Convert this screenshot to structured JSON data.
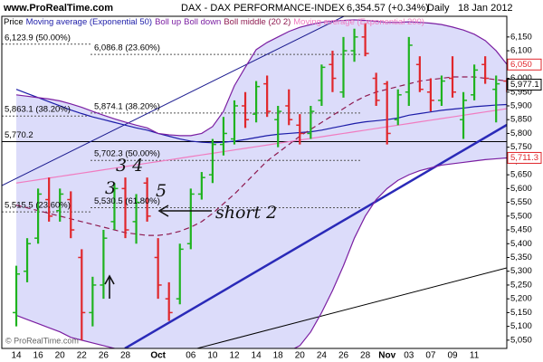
{
  "chart_data": {
    "type": "ohlc",
    "site": "www.ProRealTime.com",
    "title": "DAX - DAX PERFORMANCE-INDEX",
    "price": "6,354.57 (+0.34%)",
    "period": "Daily",
    "date": "18 Jan 2012",
    "watermark": "© ProRealTime.com",
    "price_label": "Price",
    "categories": [
      "14",
      null,
      "16",
      null,
      "20",
      null,
      "22",
      null,
      "26",
      null,
      "28",
      null,
      null,
      "Oct",
      null,
      null,
      "06",
      null,
      "10",
      null,
      "12",
      null,
      "14",
      null,
      "18",
      null,
      "20",
      null,
      "24",
      null,
      "26",
      null,
      "28",
      null,
      "Nov",
      null,
      "03",
      null,
      "07",
      null,
      "09",
      null,
      "11",
      null,
      null,
      null
    ],
    "open": [
      5150,
      5300,
      5420,
      5560,
      5520,
      5560,
      5350,
      5150,
      5250,
      5480,
      5600,
      5480,
      5620,
      5350,
      5200,
      5200,
      5400,
      5580,
      5650,
      5760,
      5780,
      5900,
      5870,
      5980,
      5850,
      5900,
      5830,
      5800,
      5920,
      6050,
      5950,
      6100,
      6150,
      6000,
      5980,
      5850,
      5950,
      6050,
      5950,
      5920,
      6000,
      5850,
      5940,
      6050,
      5960,
      5990
    ],
    "high": [
      5320,
      5420,
      5600,
      5640,
      5600,
      5590,
      5380,
      5280,
      5450,
      5620,
      5640,
      5580,
      5640,
      5420,
      5260,
      5400,
      5600,
      5660,
      5780,
      5860,
      5920,
      5950,
      5990,
      6010,
      5900,
      5960,
      5870,
      5900,
      6050,
      6100,
      6150,
      6180,
      6200,
      6020,
      5990,
      5960,
      6150,
      6080,
      6000,
      6010,
      6080,
      5950,
      6050,
      6080,
      6010,
      6000
    ],
    "low": [
      5100,
      5260,
      5400,
      5480,
      5480,
      5420,
      5050,
      5100,
      5200,
      5450,
      5420,
      5400,
      5480,
      5200,
      5120,
      5180,
      5380,
      5560,
      5620,
      5720,
      5760,
      5820,
      5840,
      5860,
      5750,
      5830,
      5760,
      5780,
      5900,
      5950,
      5930,
      6060,
      6080,
      5900,
      5760,
      5830,
      5900,
      5950,
      5880,
      5900,
      5930,
      5780,
      5920,
      5980,
      5840,
      5950
    ],
    "close": [
      5290,
      5400,
      5580,
      5500,
      5580,
      5450,
      5150,
      5250,
      5420,
      5600,
      5450,
      5550,
      5500,
      5250,
      5150,
      5380,
      5580,
      5640,
      5760,
      5800,
      5900,
      5850,
      5970,
      5880,
      5880,
      5850,
      5800,
      5880,
      6040,
      6000,
      6100,
      6150,
      6090,
      5920,
      5800,
      5940,
      6120,
      5960,
      5920,
      5990,
      5950,
      5920,
      6030,
      6000,
      5980,
      5977.1
    ],
    "up_color": "#1fb31f",
    "down_color": "#e0262b",
    "series": [
      {
        "name": "Moving average (Exponential 50)",
        "color": "#1c1ca8",
        "values": [
          5960,
          5945,
          5930,
          5915,
          5900,
          5885,
          5872,
          5860,
          5850,
          5840,
          5830,
          5820,
          5812,
          5800,
          5790,
          5780,
          5772,
          5768,
          5766,
          5768,
          5772,
          5778,
          5785,
          5792,
          5797,
          5800,
          5803,
          5806,
          5812,
          5820,
          5828,
          5836,
          5842,
          5846,
          5850,
          5856,
          5866,
          5872,
          5878,
          5884,
          5888,
          5892,
          5897,
          5900,
          5903,
          5905
        ]
      },
      {
        "name": "Boll up",
        "color": "#7b1fa2",
        "values": [
          5940,
          5935,
          5930,
          5925,
          5918,
          5907,
          5895,
          5880,
          5866,
          5853,
          5841,
          5830,
          5820,
          5800,
          5795,
          5792,
          5792,
          5800,
          5825,
          5880,
          5973,
          6040,
          6104,
          6130,
          6150,
          6170,
          6185,
          6195,
          6203,
          6208,
          6210,
          6212,
          6210,
          6207,
          6203,
          6203,
          6205,
          6203,
          6200,
          6195,
          6186,
          6175,
          6160,
          6137,
          6100,
          6050
        ]
      },
      {
        "name": "Boll down",
        "color": "#7b1fa2",
        "values": [
          5140,
          5125,
          5110,
          5095,
          5080,
          5060,
          5050,
          5040,
          5030,
          5020,
          5010,
          5000,
          4990,
          4985,
          4985,
          4990,
          4995,
          4995,
          4995,
          5000,
          5000,
          5000,
          5000,
          5000,
          5005,
          5010,
          5030,
          5080,
          5150,
          5230,
          5320,
          5420,
          5500,
          5560,
          5600,
          5630,
          5650,
          5665,
          5675,
          5685,
          5690,
          5695,
          5700,
          5705,
          5708,
          5711.3
        ]
      },
      {
        "name": "Boll middle (20 2)",
        "color": "#8e1a50",
        "dashed": true,
        "values": [
          5540,
          5530,
          5520,
          5510,
          5500,
          5490,
          5480,
          5470,
          5460,
          5450,
          5440,
          5435,
          5430,
          5430,
          5435,
          5445,
          5460,
          5480,
          5510,
          5545,
          5580,
          5620,
          5660,
          5700,
          5730,
          5760,
          5790,
          5815,
          5840,
          5865,
          5890,
          5915,
          5935,
          5950,
          5960,
          5970,
          5980,
          5990,
          5995,
          6000,
          6005,
          6005,
          6005,
          6000,
          5995,
          5990
        ]
      },
      {
        "name": "Moving average (Exponential 200)",
        "color": "#f07cc0",
        "values": [
          5620,
          5626,
          5632,
          5638,
          5644,
          5650,
          5656,
          5662,
          5668,
          5674,
          5680,
          5686,
          5692,
          5698,
          5704,
          5710,
          5716,
          5722,
          5728,
          5734,
          5740,
          5746,
          5752,
          5758,
          5764,
          5770,
          5776,
          5782,
          5788,
          5794,
          5800,
          5806,
          5812,
          5818,
          5824,
          5830,
          5836,
          5842,
          5848,
          5854,
          5860,
          5866,
          5872,
          5878,
          5884,
          5890
        ]
      }
    ],
    "band_fill": "#dcdcfa",
    "ylim": [
      5020,
      6225
    ],
    "yticks": [
      {
        "value": 5050,
        "label": "5,050"
      },
      {
        "value": 5100,
        "label": "5,100"
      },
      {
        "value": 5150,
        "label": "5,150"
      },
      {
        "value": 5200,
        "label": "5,200"
      },
      {
        "value": 5250,
        "label": "5,250"
      },
      {
        "value": 5300,
        "label": "5,300"
      },
      {
        "value": 5350,
        "label": "5,350"
      },
      {
        "value": 5400,
        "label": "5,400"
      },
      {
        "value": 5450,
        "label": "5,450"
      },
      {
        "value": 5500,
        "label": "5,500"
      },
      {
        "value": 5550,
        "label": "5,550"
      },
      {
        "value": 5600,
        "label": "5,600"
      },
      {
        "value": 5650,
        "label": "5,650"
      },
      {
        "value": 5700,
        "label": "5,700"
      },
      {
        "value": 5750,
        "label": "5,750"
      },
      {
        "value": 5800,
        "label": "5,800"
      },
      {
        "value": 5850,
        "label": "5,850"
      },
      {
        "value": 5900,
        "label": "5,900"
      },
      {
        "value": 5950,
        "label": "5,950"
      },
      {
        "value": 6000,
        "label": "6,000"
      },
      {
        "value": 6050,
        "label": "6,050"
      },
      {
        "value": 6100,
        "label": "6,100"
      },
      {
        "value": 6150,
        "label": "6,150"
      }
    ],
    "markers": [
      {
        "value": 6050,
        "label": "6,050",
        "color": "#e0262b"
      },
      {
        "value": 5977.1,
        "label": "5,977.1",
        "color": "#000000"
      },
      {
        "value": 5711.3,
        "label": "5,711.3",
        "color": "#e0262b"
      }
    ],
    "fib_right": [
      {
        "value": 6086.8,
        "label": "6,086.8 (23.60%)"
      },
      {
        "value": 5874.1,
        "label": "5,874.1 (38.20%)"
      },
      {
        "value": 5702.3,
        "label": "5,702.3 (50.00%)"
      },
      {
        "value": 5530.5,
        "label": "5,530.5 (61.80%)"
      }
    ],
    "fib_left": [
      {
        "value": 6123.9,
        "label": "6,123.9 (50.00%)"
      },
      {
        "value": 5863.1,
        "label": "5,863.1 (38.20%)"
      },
      {
        "value": 5770.2,
        "label": "5,770.2",
        "solid": true
      },
      {
        "value": 5515.5,
        "label": "5,515.5 (23.60%)"
      }
    ],
    "annotations": [
      "3 4",
      "3",
      "5",
      "short 2"
    ]
  }
}
